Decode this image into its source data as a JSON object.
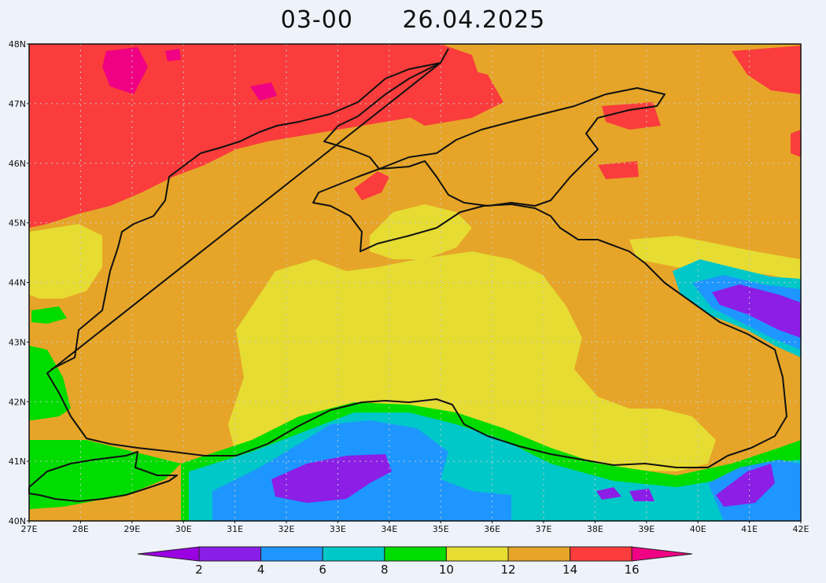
{
  "header": {
    "time": "03-00",
    "date": "26.04.2025"
  },
  "map": {
    "lat_labels": [
      "48N",
      "47N",
      "46N",
      "45N",
      "44N",
      "43N",
      "42N",
      "41N",
      "40N"
    ],
    "lon_labels": [
      "27E",
      "28E",
      "29E",
      "30E",
      "31E",
      "32E",
      "33E",
      "34E",
      "35E",
      "36E",
      "37E",
      "38E",
      "39E",
      "40E",
      "41E",
      "42E"
    ],
    "lat_range": [
      40,
      48
    ],
    "lon_range": [
      27,
      42
    ],
    "grid": "dotted"
  },
  "colorbar": {
    "labels": [
      "2",
      "4",
      "6",
      "8",
      "10",
      "12",
      "14",
      "16"
    ],
    "colors": [
      "#9a00e0",
      "#8a1ee6",
      "#1e96ff",
      "#00c8c8",
      "#00dc00",
      "#e6dc32",
      "#e6a528",
      "#fa3c3c",
      "#f00082"
    ]
  },
  "colors": {
    "purple": "#8c1ee6",
    "blue": "#1e96ff",
    "cyan": "#00c8c8",
    "green": "#00dc00",
    "yellow": "#e6dc32",
    "orange": "#e6a528",
    "red": "#fa3c3c",
    "magenta": "#f00082",
    "coast": "#111111"
  }
}
